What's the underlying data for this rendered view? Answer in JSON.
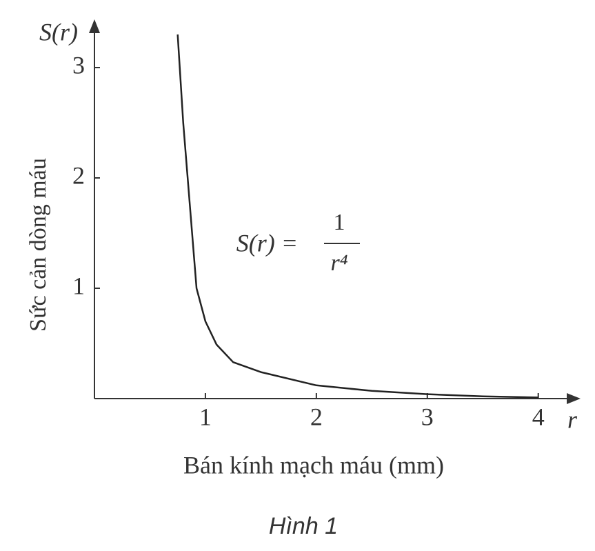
{
  "chart_data": {
    "type": "line",
    "y_axis_symbol": "S(r)",
    "x_axis_symbol": "r",
    "ylabel": "Sức cản dòng máu",
    "xlabel": "Bán kính mạch máu (mm)",
    "annotation": {
      "lhs": "S(r) =",
      "numerator": "1",
      "denominator": "r⁴"
    },
    "caption": "Hình 1",
    "x": [
      0.75,
      0.8,
      0.84,
      0.92,
      1,
      1.1,
      1.25,
      1.5,
      2,
      2.5,
      3,
      3.5,
      4
    ],
    "values": [
      3.3,
      2.5,
      2,
      1,
      0.7,
      0.49,
      0.33,
      0.24,
      0.12,
      0.07,
      0.04,
      0.02,
      0.01
    ],
    "color": "#222222",
    "xlim": [
      0,
      4.3
    ],
    "ylim": [
      0,
      3.4
    ],
    "xticks": [
      1,
      2,
      3,
      4
    ],
    "yticks": [
      1,
      2,
      3
    ]
  }
}
